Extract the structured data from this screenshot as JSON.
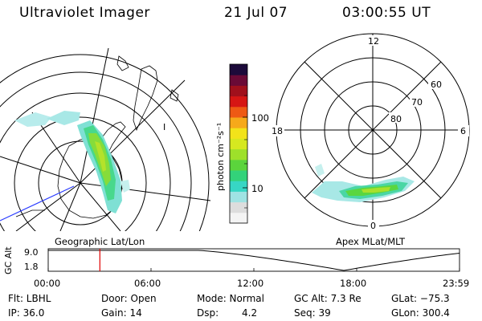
{
  "header": {
    "instrument": "Ultraviolet Imager",
    "date": "21 Jul 07",
    "time": "03:00:55 UT"
  },
  "colorbar": {
    "unit_label": "photon cm⁻²s⁻¹",
    "tick_100": "100",
    "tick_10": "10",
    "colors": [
      "#f4f4f4",
      "#dddddd",
      "#9fe3e3",
      "#37d6c4",
      "#33d27a",
      "#5bd43c",
      "#9ee02a",
      "#d6e820",
      "#f2e31a",
      "#f6a91a",
      "#ee5a14",
      "#d61614",
      "#a0101c",
      "#6a0a36",
      "#1c0a3a"
    ]
  },
  "left_map": {
    "caption": "Geographic Lat/Lon",
    "label_I": "I"
  },
  "right_map": {
    "caption": "Apex MLat/MLT",
    "mlt_12": "12",
    "mlt_6": "6",
    "mlt_18": "18",
    "mlt_0": "0",
    "mlat_60": "60",
    "mlat_70": "70",
    "mlat_80": "80"
  },
  "altitude_plot": {
    "axis_label": "GC Alt",
    "ytick_max": "9.0",
    "ytick_min": "1.8",
    "xticks": [
      "00:00",
      "06:00",
      "12:00",
      "18:00",
      "23:59"
    ],
    "marker_time_hours": 3.015,
    "line_color": "#000000",
    "marker_color": "#e00000"
  },
  "status": {
    "flt": "Flt: LBHL",
    "door": "Door: Open",
    "mode": "Mode: Normal",
    "gc_alt": "GC Alt: 7.3 Re",
    "glat": "GLat: −75.3",
    "ip": "IP: 36.0",
    "gain": "Gain: 14",
    "dsp_label": "Dsp:",
    "dsp_value": "4.2",
    "seq": "Seq: 39",
    "glon": "GLon: 300.4"
  }
}
